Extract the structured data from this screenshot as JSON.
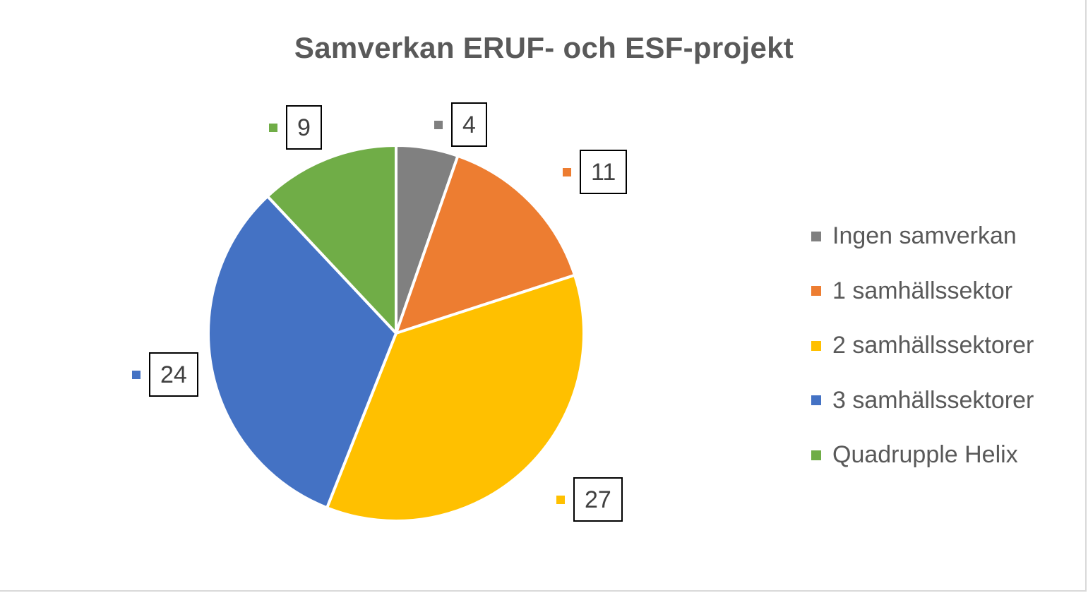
{
  "chart_data": {
    "type": "pie",
    "title": "Samverkan ERUF- och ESF-projekt",
    "categories": [
      "Ingen samverkan",
      "1 samhällssektor",
      "2 samhällssektorer",
      "3 samhällssektorer",
      "Quadrupple Helix"
    ],
    "values": [
      4,
      11,
      27,
      24,
      9
    ],
    "colors": [
      "#808080",
      "#ED7D31",
      "#FFC000",
      "#4472C4",
      "#70AD47"
    ],
    "start_angle": "12 o'clock",
    "direction": "clockwise",
    "legend_position": "right",
    "data_labels": [
      "4",
      "11",
      "27",
      "24",
      "9"
    ]
  },
  "title": "Samverkan ERUF- och ESF-projekt",
  "labels": {
    "ingen": "4",
    "one": "11",
    "two": "27",
    "three": "24",
    "quad": "9"
  },
  "legend": [
    {
      "label": "Ingen samverkan",
      "color": "#808080"
    },
    {
      "label": "1 samhällssektor",
      "color": "#ED7D31"
    },
    {
      "label": "2 samhällssektorer",
      "color": "#FFC000"
    },
    {
      "label": "3 samhällssektorer",
      "color": "#4472C4"
    },
    {
      "label": "Quadrupple Helix",
      "color": "#70AD47"
    }
  ]
}
